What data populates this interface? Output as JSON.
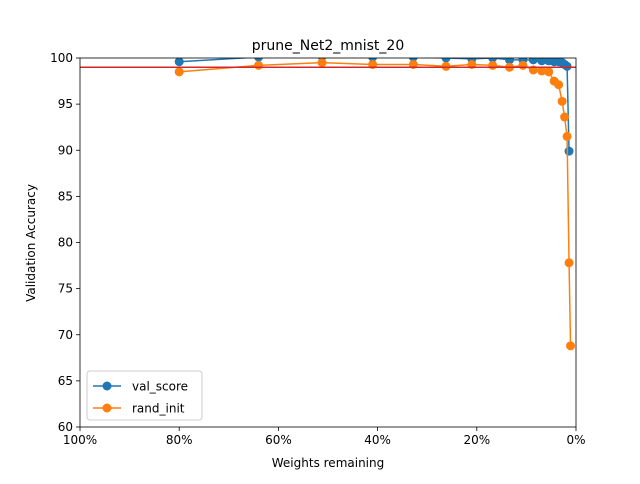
{
  "chart_data": {
    "type": "line",
    "title": "prune_Net2_mnist_20",
    "xlabel": "Weights remaining",
    "ylabel": "Validation Accuracy",
    "xlim": [
      100,
      0
    ],
    "ylim": [
      60,
      100
    ],
    "x_ticks": [
      {
        "value": 100,
        "label": "100%"
      },
      {
        "value": 80,
        "label": "80%"
      },
      {
        "value": 60,
        "label": "60%"
      },
      {
        "value": 40,
        "label": "40%"
      },
      {
        "value": 20,
        "label": "20%"
      },
      {
        "value": 0,
        "label": "0%"
      }
    ],
    "y_ticks": [
      60,
      65,
      70,
      75,
      80,
      85,
      90,
      95,
      100
    ],
    "grid": false,
    "legend_position": "bottom-left",
    "reference_line": {
      "y": 99.0,
      "color": "#d62728"
    },
    "series": [
      {
        "name": "val_score",
        "color": "#1f77b4",
        "x": [
          80.0,
          64.0,
          51.2,
          41.0,
          32.8,
          26.2,
          21.0,
          16.8,
          13.4,
          10.7,
          8.6,
          6.9,
          5.5,
          4.4,
          3.5,
          2.8,
          2.3,
          1.8,
          1.4
        ],
        "y": [
          99.6,
          100.1,
          100.2,
          100.1,
          100.1,
          100.0,
          99.9,
          100.0,
          99.8,
          99.8,
          99.8,
          99.7,
          99.7,
          99.6,
          99.6,
          99.5,
          99.3,
          99.1,
          89.9
        ]
      },
      {
        "name": "rand_init",
        "color": "#ff7f0e",
        "x": [
          80.0,
          64.0,
          51.2,
          41.0,
          32.8,
          26.2,
          21.0,
          16.8,
          13.4,
          10.7,
          8.6,
          6.9,
          5.5,
          4.4,
          3.5,
          2.8,
          2.3,
          1.8,
          1.4,
          1.1
        ],
        "y": [
          98.5,
          99.2,
          99.5,
          99.3,
          99.3,
          99.1,
          99.3,
          99.2,
          99.0,
          99.2,
          98.7,
          98.6,
          98.5,
          97.5,
          97.1,
          95.3,
          93.6,
          91.5,
          77.8,
          68.8
        ]
      }
    ]
  }
}
